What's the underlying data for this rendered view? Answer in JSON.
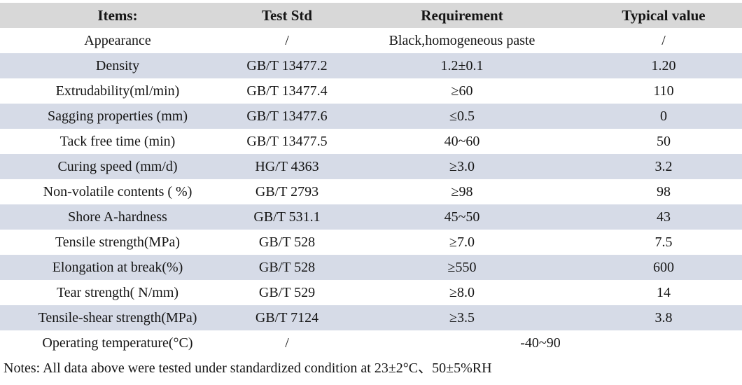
{
  "table": {
    "headers": [
      "Items:",
      "Test Std",
      "Requirement",
      "Typical value"
    ],
    "rows": [
      {
        "item": "Appearance",
        "std": "/",
        "req": "Black,homogeneous paste",
        "typical": "/"
      },
      {
        "item": "Density",
        "std": "GB/T 13477.2",
        "req": "1.2±0.1",
        "typical": "1.20"
      },
      {
        "item": "Extrudability(ml/min)",
        "std": "GB/T 13477.4",
        "req": "≥60",
        "typical": "110"
      },
      {
        "item": "Sagging properties (mm)",
        "std": "GB/T 13477.6",
        "req": "≤0.5",
        "typical": "0"
      },
      {
        "item": "Tack free time (min)",
        "std": "GB/T 13477.5",
        "req": "40~60",
        "typical": "50"
      },
      {
        "item": "Curing speed (mm/d)",
        "std": "HG/T 4363",
        "req": "≥3.0",
        "typical": "3.2"
      },
      {
        "item": "Non-volatile contents ( %)",
        "std": "GB/T 2793",
        "req": "≥98",
        "typical": "98"
      },
      {
        "item": "Shore A-hardness",
        "std": "GB/T 531.1",
        "req": "45~50",
        "typical": "43"
      },
      {
        "item": "Tensile strength(MPa)",
        "std": "GB/T 528",
        "req": "≥7.0",
        "typical": "7.5"
      },
      {
        "item": "Elongation at break(%)",
        "std": "GB/T 528",
        "req": "≥550",
        "typical": "600"
      },
      {
        "item": "Tear strength( N/mm)",
        "std": "GB/T 529",
        "req": "≥8.0",
        "typical": "14"
      },
      {
        "item": "Tensile-shear strength(MPa)",
        "std": "GB/T 7124",
        "req": "≥3.5",
        "typical": "3.8"
      },
      {
        "item": "Operating temperature(°C)",
        "std": "/",
        "req": "-40~90",
        "typical": ""
      }
    ],
    "note": "Notes: All data above were tested under standardized condition at 23±2°C、50±5%RH"
  },
  "colors": {
    "header_bg": "#d8d8d8",
    "stripe_bg": "#d6dbe7",
    "text": "#151515"
  }
}
